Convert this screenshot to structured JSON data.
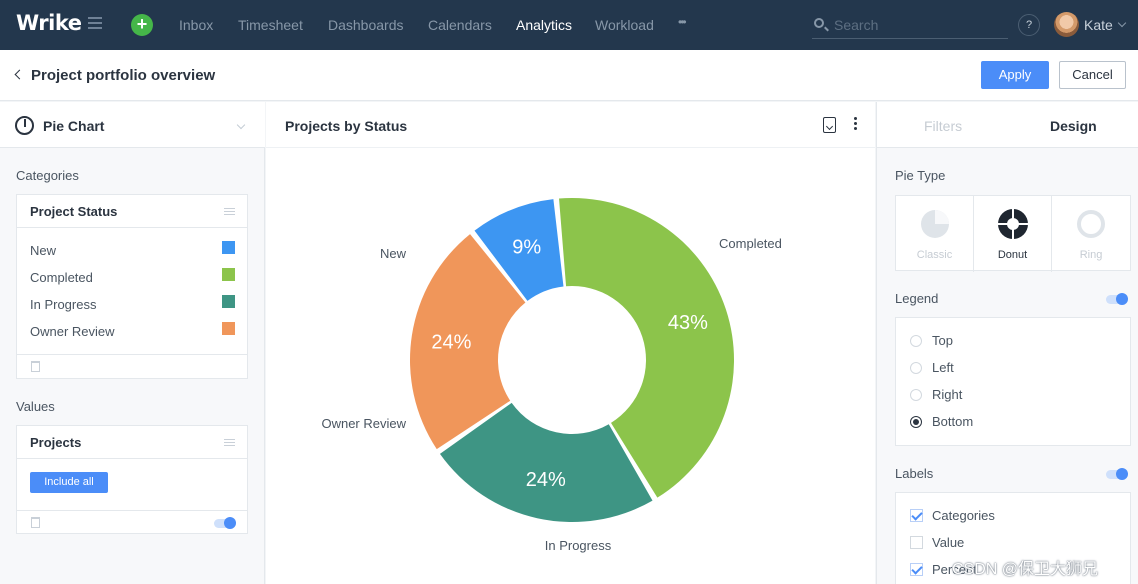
{
  "topnav": {
    "logo": "Wrike",
    "items": [
      "Inbox",
      "Timesheet",
      "Dashboards",
      "Calendars",
      "Analytics",
      "Workload",
      "•••"
    ],
    "active_item": "Analytics",
    "search_placeholder": "Search",
    "help_label": "?",
    "user_name": "Kate"
  },
  "subheader": {
    "title": "Project portfolio overview",
    "apply_label": "Apply",
    "cancel_label": "Cancel"
  },
  "left_panel": {
    "chart_type": "Pie Chart",
    "categories_label": "Categories",
    "categories_box_title": "Project Status",
    "categories": [
      {
        "label": "New",
        "color": "#3d96f2"
      },
      {
        "label": "Completed",
        "color": "#8cc44b"
      },
      {
        "label": "In Progress",
        "color": "#3e9584"
      },
      {
        "label": "Owner Review",
        "color": "#f0965a"
      }
    ],
    "values_label": "Values",
    "values_box_title": "Projects",
    "include_all_label": "Include all"
  },
  "center": {
    "title": "Projects by Status"
  },
  "chart_data": {
    "type": "pie",
    "variant": "donut",
    "title": "Projects by Status",
    "categories": [
      "New",
      "Completed",
      "In Progress",
      "Owner Review"
    ],
    "values": [
      9,
      43,
      24,
      24
    ],
    "labels": [
      "9%",
      "43%",
      "24%",
      "24%"
    ],
    "colors": [
      "#3d96f2",
      "#8cc44b",
      "#3e9584",
      "#f0965a"
    ],
    "legend": "none",
    "category_labels": "outside"
  },
  "right_panel": {
    "tabs": [
      "Filters",
      "Design"
    ],
    "active_tab": "Design",
    "pie_type_label": "Pie Type",
    "pie_types": [
      "Classic",
      "Donut",
      "Ring"
    ],
    "selected_pie_type": "Donut",
    "legend_label": "Legend",
    "legend_enabled": true,
    "legend_options": [
      "Top",
      "Left",
      "Right",
      "Bottom"
    ],
    "legend_selected": "Bottom",
    "labels_label": "Labels",
    "labels_enabled": true,
    "label_options": [
      {
        "label": "Categories",
        "checked": true
      },
      {
        "label": "Value",
        "checked": false
      },
      {
        "label": "Percent",
        "checked": true
      }
    ]
  },
  "watermark": "CSDN @保卫大狮兄"
}
